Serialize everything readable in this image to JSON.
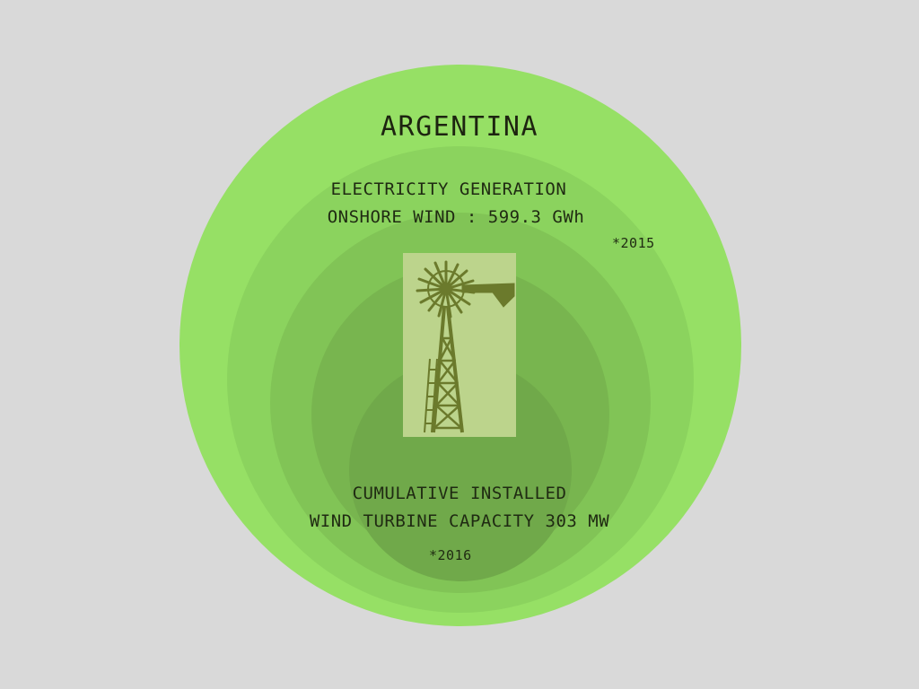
{
  "country": "ARGENTINA",
  "electricity": {
    "line1": "ELECTRICITY GENERATION",
    "line2": "ONSHORE WIND : 599.3 GWh",
    "year_note": "*2015"
  },
  "capacity": {
    "line1": "CUMULATIVE INSTALLED",
    "line2": "WIND TURBINE CAPACITY  303 MW",
    "year_note": "*2016"
  },
  "colors": {
    "background": "#d9d9d9",
    "outer_circle": "#96e065",
    "inner_circle": "#70a94a",
    "windmill_panel": "#bcd48c",
    "windmill": "#6b7a2c",
    "text": "#1f2a12"
  },
  "icons": {
    "center_illustration": "windmill-icon"
  }
}
